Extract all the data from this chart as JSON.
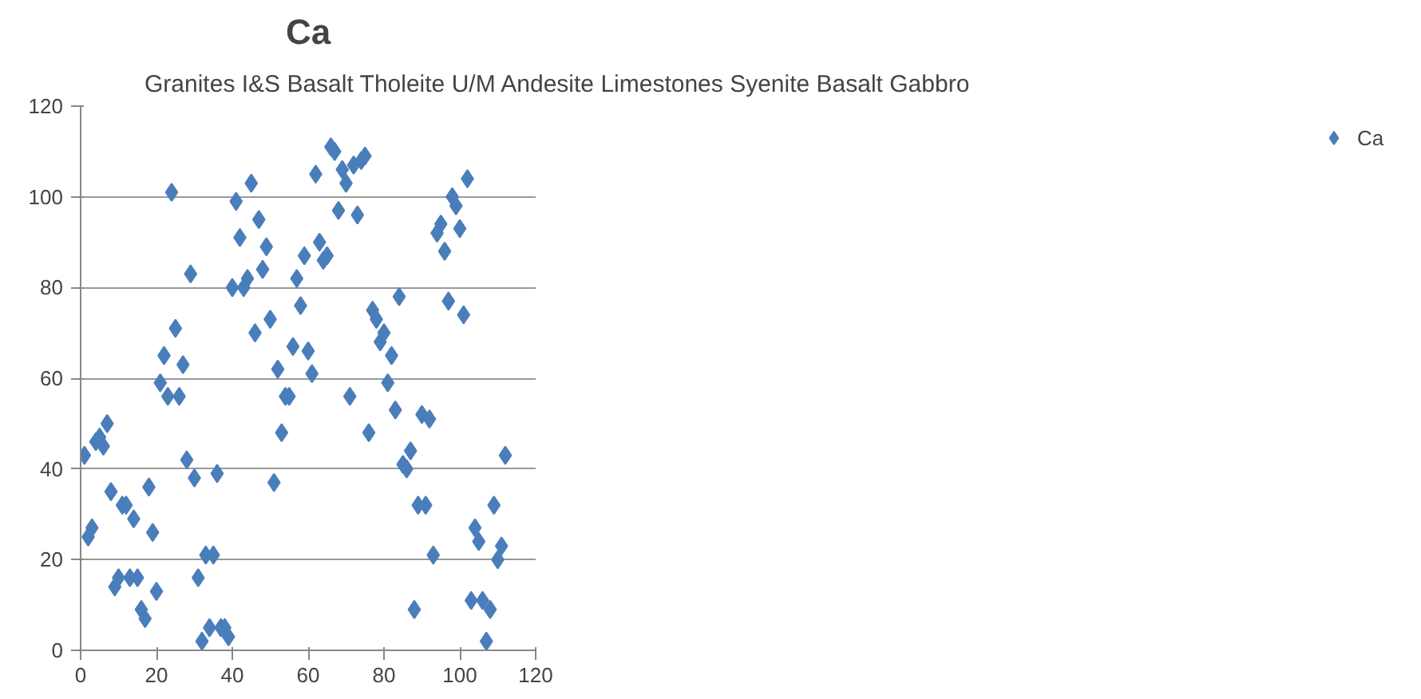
{
  "chart_data": {
    "type": "scatter",
    "title": "Ca",
    "annotations": [
      "Granites I&S   Basalt Tholeite U/M Andesite   Limestones Syenite Basalt Gabbro"
    ],
    "x": [
      1,
      2,
      3,
      4,
      5,
      6,
      7,
      8,
      9,
      10,
      11,
      12,
      13,
      14,
      15,
      16,
      17,
      18,
      19,
      20,
      21,
      22,
      23,
      24,
      25,
      26,
      27,
      28,
      29,
      30,
      31,
      32,
      33,
      34,
      35,
      36,
      37,
      38,
      39,
      40,
      41,
      42,
      43,
      44,
      45,
      46,
      47,
      48,
      49,
      50,
      51,
      52,
      53,
      54,
      55,
      56,
      57,
      58,
      59,
      60,
      61,
      62,
      63,
      64,
      65,
      66,
      67,
      68,
      69,
      70,
      71,
      72,
      73,
      74,
      75,
      76,
      77,
      78,
      79,
      80,
      81,
      82,
      83,
      84,
      85,
      86,
      87,
      88,
      89,
      90,
      91,
      92,
      93,
      94,
      95,
      96,
      97,
      98,
      99,
      100,
      101,
      102,
      103,
      104,
      105,
      106,
      107,
      108,
      109,
      110,
      111,
      112
    ],
    "series": [
      {
        "name": "Ca",
        "color": "#4a7ebb",
        "values": [
          43,
          25,
          27,
          46,
          47,
          45,
          50,
          35,
          14,
          16,
          32,
          32,
          16,
          29,
          16,
          9,
          7,
          36,
          26,
          13,
          59,
          65,
          56,
          101,
          71,
          56,
          63,
          42,
          83,
          38,
          16,
          2,
          21,
          5,
          21,
          39,
          5,
          5,
          3,
          80,
          99,
          91,
          80,
          82,
          103,
          70,
          95,
          84,
          89,
          73,
          37,
          62,
          48,
          56,
          56,
          67,
          82,
          76,
          87,
          66,
          61,
          105,
          90,
          86,
          87,
          111,
          110,
          97,
          106,
          103,
          56,
          107,
          96,
          108,
          109,
          48,
          75,
          73,
          68,
          70,
          59,
          65,
          53,
          78,
          41,
          40,
          44,
          9,
          32,
          52,
          32,
          51,
          21,
          92,
          94,
          88,
          77,
          100,
          98,
          93,
          74,
          104,
          11,
          27,
          24,
          11,
          2,
          9,
          32,
          20,
          23,
          43
        ]
      }
    ],
    "xlim": [
      0,
      120
    ],
    "ylim": [
      0,
      120
    ],
    "xticks": [
      0,
      20,
      40,
      60,
      80,
      100,
      120
    ],
    "yticks": [
      0,
      20,
      40,
      60,
      80,
      100,
      120
    ],
    "grid": "y",
    "legend": "right",
    "marker": "diamond"
  }
}
